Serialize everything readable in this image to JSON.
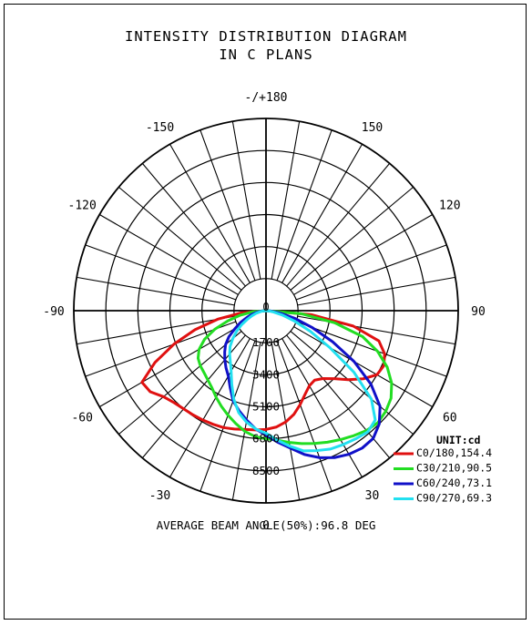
{
  "title_line1": "INTENSITY DISTRIBUTION DIAGRAM",
  "title_line2": "IN C PLANS",
  "footer": "AVERAGE BEAM ANGLE(50%):96.8 DEG",
  "chart_data": {
    "type": "polar",
    "title": "INTENSITY DISTRIBUTION DIAGRAM IN C PLANS",
    "unit_label": "UNIT:cd",
    "angle_labels": [
      {
        "angle": 180,
        "text": "-/+180"
      },
      {
        "angle": -150,
        "text": "-150"
      },
      {
        "angle": 150,
        "text": "150"
      },
      {
        "angle": -120,
        "text": "-120"
      },
      {
        "angle": 120,
        "text": "120"
      },
      {
        "angle": -90,
        "text": "-90"
      },
      {
        "angle": 90,
        "text": "90"
      },
      {
        "angle": -60,
        "text": "-60"
      },
      {
        "angle": 60,
        "text": "60"
      },
      {
        "angle": -30,
        "text": "-30"
      },
      {
        "angle": 30,
        "text": "30"
      },
      {
        "angle": 0,
        "text": "0"
      }
    ],
    "radial_ticks": [
      0,
      1700,
      3400,
      5100,
      6800,
      8500
    ],
    "radial_labels": [
      "0",
      "1700",
      "3400",
      "5100",
      "6800",
      "8500"
    ],
    "r_max": 10200,
    "grid": true,
    "legend_position": "bottom-right",
    "series": [
      {
        "name": "C0/180,154.4",
        "color": "#e01010",
        "angles": [
          -90,
          -85,
          -80,
          -75,
          -70,
          -65,
          -60,
          -55,
          -50,
          -45,
          -40,
          -35,
          -30,
          -25,
          -20,
          -15,
          -10,
          -5,
          0,
          5,
          10,
          15,
          20,
          25,
          30,
          35,
          40,
          45,
          50,
          55,
          60,
          65,
          70,
          75,
          80,
          85,
          90
        ],
        "values": [
          0,
          1300,
          2600,
          3900,
          5200,
          6500,
          7600,
          7500,
          7100,
          6900,
          6800,
          6750,
          6700,
          6650,
          6600,
          6500,
          6400,
          6350,
          6300,
          6200,
          6000,
          5700,
          5300,
          4900,
          4600,
          4500,
          4700,
          5100,
          5700,
          6300,
          6800,
          6900,
          6700,
          6200,
          4700,
          2400,
          0
        ]
      },
      {
        "name": "C30/210,90.5",
        "color": "#22dd22",
        "angles": [
          -90,
          -85,
          -80,
          -75,
          -70,
          -65,
          -60,
          -55,
          -50,
          -45,
          -40,
          -35,
          -30,
          -25,
          -20,
          -15,
          -10,
          -5,
          0,
          5,
          10,
          15,
          20,
          25,
          30,
          35,
          40,
          45,
          50,
          55,
          60,
          65,
          70,
          75,
          80,
          85,
          90
        ],
        "values": [
          0,
          700,
          1400,
          2100,
          2900,
          3600,
          4100,
          4400,
          4550,
          4650,
          4800,
          5000,
          5300,
          5600,
          5900,
          6200,
          6500,
          6700,
          6800,
          6900,
          7100,
          7300,
          7500,
          7700,
          7900,
          8100,
          8300,
          8400,
          8300,
          8100,
          7700,
          7100,
          6300,
          5300,
          3700,
          1900,
          0
        ]
      },
      {
        "name": "C60/240,73.1",
        "color": "#1010c8",
        "angles": [
          -90,
          -85,
          -80,
          -75,
          -70,
          -65,
          -60,
          -55,
          -50,
          -45,
          -40,
          -35,
          -30,
          -25,
          -20,
          -15,
          -10,
          -5,
          0,
          5,
          10,
          15,
          20,
          25,
          30,
          35,
          40,
          45,
          50,
          55,
          60,
          65,
          70,
          75,
          80,
          85,
          90
        ],
        "values": [
          0,
          250,
          500,
          800,
          1100,
          1500,
          1900,
          2400,
          2800,
          3100,
          3400,
          3700,
          4000,
          4500,
          5100,
          5500,
          5900,
          6300,
          6600,
          7000,
          7400,
          7900,
          8300,
          8600,
          8800,
          8900,
          8850,
          8500,
          7900,
          6800,
          5400,
          3900,
          2600,
          1600,
          800,
          300,
          0
        ]
      },
      {
        "name": "C90/270,69.3",
        "color": "#22e0f0",
        "angles": [
          -90,
          -85,
          -80,
          -75,
          -70,
          -65,
          -60,
          -55,
          -50,
          -45,
          -40,
          -35,
          -30,
          -25,
          -20,
          -15,
          -10,
          -5,
          0,
          5,
          10,
          15,
          20,
          25,
          30,
          35,
          40,
          45,
          50,
          55,
          60,
          65,
          70,
          75,
          80,
          85,
          90
        ],
        "values": [
          0,
          150,
          300,
          550,
          800,
          1100,
          1500,
          1900,
          2300,
          2700,
          3000,
          3300,
          3700,
          4300,
          5000,
          5600,
          6000,
          6300,
          6500,
          6900,
          7300,
          7700,
          7900,
          8100,
          8200,
          8300,
          8400,
          8200,
          7300,
          5700,
          3900,
          2600,
          1600,
          900,
          400,
          150,
          0
        ]
      }
    ]
  }
}
